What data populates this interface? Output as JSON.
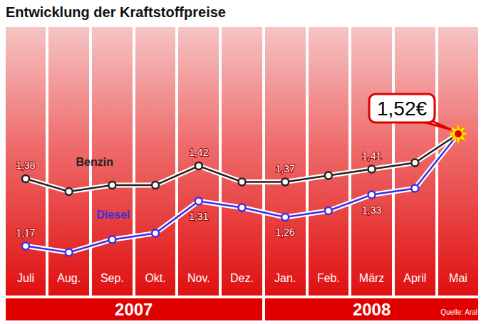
{
  "chart_data": {
    "type": "line",
    "title": "Entwicklung der Kraftstoffpreise",
    "categories": [
      "Juli",
      "Aug.",
      "Sep.",
      "Okt.",
      "Nov.",
      "Dez.",
      "Jan.",
      "Feb.",
      "März",
      "April",
      "Mai"
    ],
    "category_groups": [
      {
        "label": "2007",
        "from": "Juli",
        "to": "Dez."
      },
      {
        "label": "2008",
        "from": "Jan.",
        "to": "Mai"
      }
    ],
    "series": [
      {
        "name": "Benzin",
        "color": "#222222",
        "marker": "circle",
        "values": [
          1.38,
          1.34,
          1.36,
          1.36,
          1.42,
          1.37,
          1.37,
          1.39,
          1.41,
          1.43,
          1.52
        ],
        "value_labels": [
          "1,38",
          null,
          null,
          null,
          "1,42",
          null,
          "1,37",
          null,
          "1,41",
          null,
          null
        ]
      },
      {
        "name": "Diesel",
        "color": "#3a2ee8",
        "marker": "circle",
        "values": [
          1.17,
          1.15,
          1.19,
          1.21,
          1.31,
          1.29,
          1.26,
          1.28,
          1.33,
          1.35,
          1.52
        ],
        "value_labels": [
          "1,17",
          null,
          null,
          null,
          "1,31",
          null,
          "1,26",
          null,
          "1,33",
          null,
          null
        ]
      }
    ],
    "annotations": [
      {
        "text": "1,52€",
        "category": "Mai",
        "value": 1.52
      }
    ],
    "source": "Quelle: Aral",
    "ylim": [
      1.1,
      1.6
    ],
    "yticks": [],
    "tick_labels": "x",
    "data_labels": true,
    "grid": false
  }
}
